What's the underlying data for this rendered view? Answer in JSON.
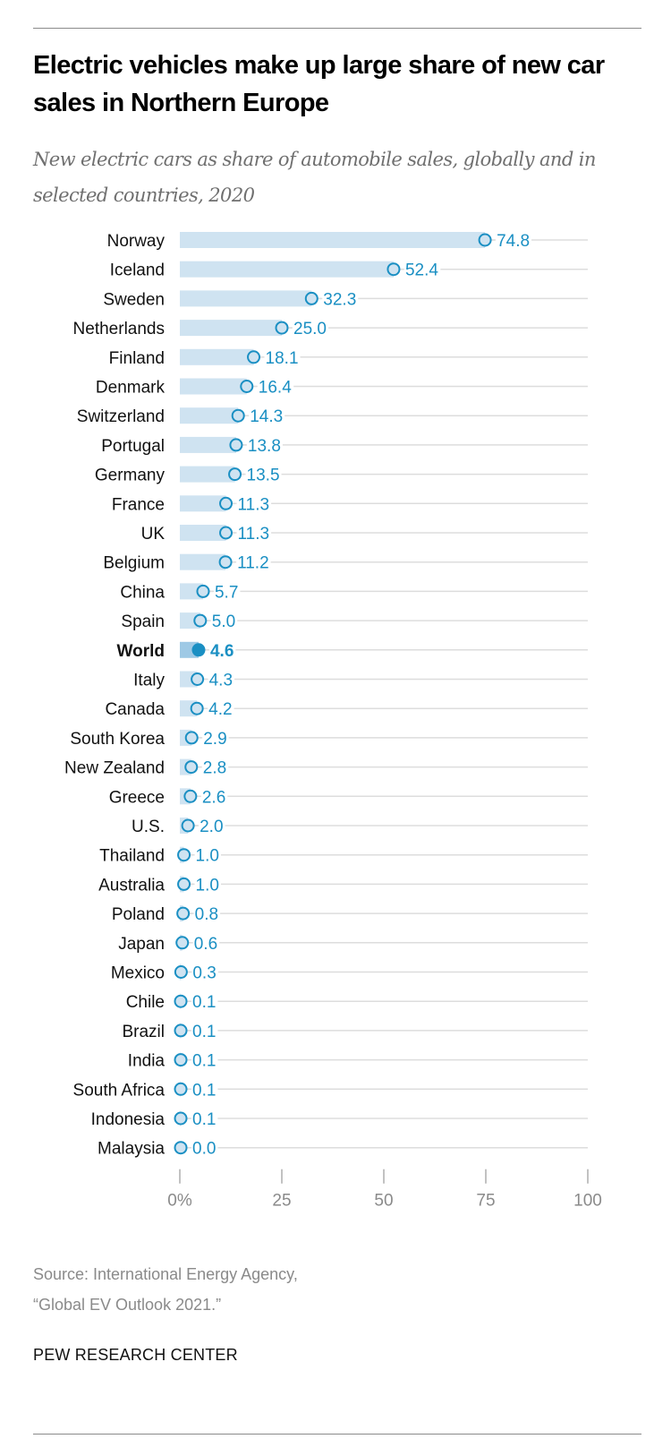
{
  "title": "Electric vehicles make up large share of new car sales in Northern Europe",
  "subtitle": "New electric cars as share of automobile sales, globally and in selected countries, 2020",
  "source": [
    "Source: International Energy Agency,",
    "“Global EV Outlook 2021.”"
  ],
  "brand": "PEW RESEARCH CENTER",
  "colors": {
    "bar": "#cfe3f1",
    "bar_highlight": "#9ec9e5",
    "dot": "#1a8fc3",
    "label": "#1a8fc3",
    "grid": "#dddddd",
    "axis_text": "#8a8a8a"
  },
  "chart_data": {
    "type": "bar",
    "title": "Electric vehicles make up large share of new car sales in Northern Europe",
    "subtitle": "New electric cars as share of automobile sales, globally and in selected countries, 2020",
    "orientation": "horizontal",
    "xlim": [
      0,
      100
    ],
    "xticks": [
      0,
      25,
      50,
      75,
      100
    ],
    "xtick_labels": [
      "0%",
      "25",
      "50",
      "75",
      "100"
    ],
    "grid": true,
    "highlight": "World",
    "categories": [
      "Norway",
      "Iceland",
      "Sweden",
      "Netherlands",
      "Finland",
      "Denmark",
      "Switzerland",
      "Portugal",
      "Germany",
      "France",
      "UK",
      "Belgium",
      "China",
      "Spain",
      "World",
      "Italy",
      "Canada",
      "South Korea",
      "New Zealand",
      "Greece",
      "U.S.",
      "Thailand",
      "Australia",
      "Poland",
      "Japan",
      "Mexico",
      "Chile",
      "Brazil",
      "India",
      "South Africa",
      "Indonesia",
      "Malaysia"
    ],
    "values": [
      74.8,
      52.4,
      32.3,
      25.0,
      18.1,
      16.4,
      14.3,
      13.8,
      13.5,
      11.3,
      11.3,
      11.2,
      5.7,
      5.0,
      4.6,
      4.3,
      4.2,
      2.9,
      2.8,
      2.6,
      2.0,
      1.0,
      1.0,
      0.8,
      0.6,
      0.3,
      0.1,
      0.1,
      0.1,
      0.1,
      0.1,
      0.0
    ],
    "value_labels": [
      "74.8",
      "52.4",
      "32.3",
      "25.0",
      "18.1",
      "16.4",
      "14.3",
      "13.8",
      "13.5",
      "11.3",
      "11.3",
      "11.2",
      "5.7",
      "5.0",
      "4.6",
      "4.3",
      "4.2",
      "2.9",
      "2.8",
      "2.6",
      "2.0",
      "1.0",
      "1.0",
      "0.8",
      "0.6",
      "0.3",
      "0.1",
      "0.1",
      "0.1",
      "0.1",
      "0.1",
      "0.0"
    ]
  }
}
